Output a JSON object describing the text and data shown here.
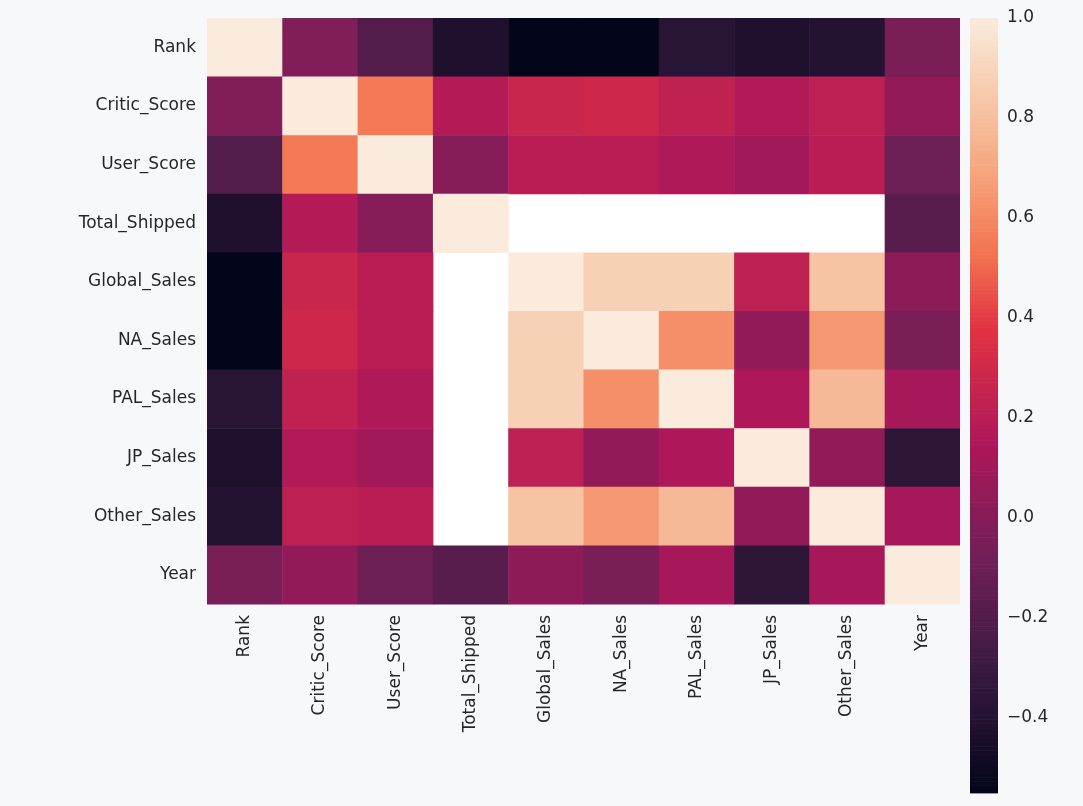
{
  "chart_data": {
    "type": "heatmap",
    "categories": [
      "Rank",
      "Critic_Score",
      "User_Score",
      "Total_Shipped",
      "Global_Sales",
      "NA_Sales",
      "PAL_Sales",
      "JP_Sales",
      "Other_Sales",
      "Year"
    ],
    "y_categories": [
      "Rank",
      "Critic_Score",
      "User_Score",
      "Total_Shipped",
      "Global_Sales",
      "NA_Sales",
      "PAL_Sales",
      "JP_Sales",
      "Other_Sales",
      "Year"
    ],
    "cells": [
      [
        1,
        -0.02,
        -0.2,
        -0.42,
        -0.55,
        -0.55,
        -0.38,
        -0.42,
        -0.4,
        -0.05
      ],
      [
        -0.02,
        1,
        0.55,
        0.18,
        0.27,
        0.29,
        0.23,
        0.17,
        0.22,
        0.05
      ],
      [
        -0.2,
        0.55,
        1,
        0.0,
        0.2,
        0.2,
        0.16,
        0.1,
        0.2,
        -0.1
      ],
      [
        -0.42,
        0.18,
        0.0,
        1,
        null,
        null,
        null,
        null,
        null,
        -0.18
      ],
      [
        -0.55,
        0.27,
        0.2,
        null,
        1,
        0.88,
        0.88,
        0.22,
        0.82,
        0.02
      ],
      [
        -0.55,
        0.29,
        0.2,
        null,
        0.88,
        1,
        0.62,
        0.05,
        0.65,
        -0.05
      ],
      [
        -0.38,
        0.23,
        0.16,
        null,
        0.88,
        0.62,
        1,
        0.15,
        0.78,
        0.12
      ],
      [
        -0.42,
        0.17,
        0.1,
        null,
        0.22,
        0.05,
        0.15,
        1,
        0.05,
        -0.35
      ],
      [
        -0.4,
        0.22,
        0.2,
        null,
        0.82,
        0.65,
        0.78,
        0.05,
        1,
        0.12
      ],
      [
        -0.05,
        0.05,
        -0.1,
        -0.18,
        0.02,
        -0.05,
        0.12,
        -0.35,
        0.12,
        1
      ]
    ],
    "clim": [
      -0.55,
      1.0
    ],
    "cticks": [
      -0.4,
      -0.2,
      {
        "value": 0,
        "label": "0.0"
      },
      0.2,
      0.4,
      0.6,
      0.8,
      {
        "value": 1,
        "label": "1.0"
      }
    ]
  }
}
